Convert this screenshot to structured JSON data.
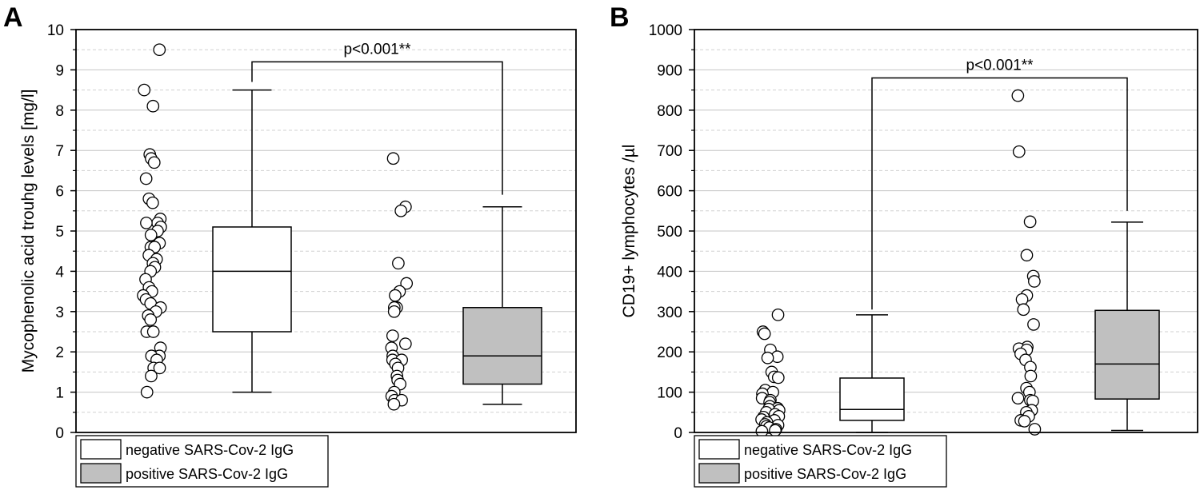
{
  "chart_data": [
    {
      "panel_label": "A",
      "type": "box+scatter",
      "ylabel": "Mycophenolic acid trouhg levels [mg/l]",
      "ylim": [
        0,
        10
      ],
      "ytick_values": [
        0,
        1,
        2,
        3,
        4,
        5,
        6,
        7,
        8,
        9,
        10
      ],
      "ytick_labels": [
        "0",
        "1",
        "2",
        "3",
        "4",
        "5",
        "6",
        "7",
        "8",
        "9",
        "10"
      ],
      "grid": "major solid, minor dashed",
      "legend_placement": "bottom-left, below plot",
      "significance": {
        "label": "p<0.001**",
        "y": 9.2,
        "left_drop_to": 8.7,
        "right_drop_to": 5.9
      },
      "series": [
        {
          "name": "negative SARS-Cov-2 IgG",
          "color": "#ffffff",
          "box": {
            "min": 1.0,
            "q1": 2.5,
            "median": 4.0,
            "q3": 5.1,
            "max": 8.5
          },
          "points": [
            9.5,
            8.5,
            8.1,
            6.9,
            6.8,
            6.7,
            6.3,
            5.8,
            5.7,
            5.3,
            5.2,
            5.2,
            5.1,
            5.0,
            4.9,
            4.7,
            4.6,
            4.6,
            4.4,
            4.3,
            4.2,
            4.1,
            4.0,
            3.8,
            3.6,
            3.5,
            3.4,
            3.3,
            3.2,
            3.1,
            3.0,
            2.9,
            2.8,
            2.5,
            2.5,
            2.1,
            1.9,
            1.9,
            1.8,
            1.6,
            1.6,
            1.4,
            1.0
          ]
        },
        {
          "name": "positive SARS-Cov-2 IgG",
          "color": "#c0c0c0",
          "box": {
            "min": 0.7,
            "q1": 1.2,
            "median": 1.9,
            "q3": 3.1,
            "max": 5.6
          },
          "points": [
            6.8,
            5.6,
            5.5,
            4.2,
            3.7,
            3.5,
            3.4,
            3.1,
            3.1,
            3.0,
            2.4,
            2.2,
            2.1,
            1.9,
            1.8,
            1.8,
            1.7,
            1.6,
            1.4,
            1.3,
            1.2,
            1.0,
            0.9,
            0.8,
            0.8,
            0.7
          ]
        }
      ]
    },
    {
      "panel_label": "B",
      "type": "box+scatter",
      "ylabel": "CD19+ lymphocytes /µl",
      "ylim": [
        0,
        1000
      ],
      "ytick_values": [
        0,
        100,
        200,
        300,
        400,
        500,
        600,
        700,
        800,
        900,
        1000
      ],
      "ytick_labels": [
        "0",
        "100",
        "200",
        "300",
        "400",
        "500",
        "600",
        "700",
        "800",
        "900",
        "1000"
      ],
      "grid": "major solid, minor dashed",
      "legend_placement": "bottom-left, below plot",
      "significance": {
        "label": "p<0.001**",
        "y": 880,
        "left_drop_to": 305,
        "right_drop_to": 550
      },
      "series": [
        {
          "name": "negative SARS-Cov-2 IgG",
          "color": "#ffffff",
          "box": {
            "min": 0,
            "q1": 30,
            "median": 57,
            "q3": 135,
            "max": 292
          },
          "points": [
            292,
            250,
            245,
            205,
            188,
            185,
            150,
            138,
            136,
            105,
            100,
            96,
            85,
            80,
            75,
            65,
            60,
            58,
            55,
            50,
            45,
            40,
            38,
            32,
            30,
            25,
            20,
            18,
            15,
            12,
            8,
            5,
            3
          ]
        },
        {
          "name": "positive SARS-Cov-2 IgG",
          "color": "#c0c0c0",
          "box": {
            "min": 5,
            "q1": 83,
            "median": 170,
            "q3": 303,
            "max": 522
          },
          "points": [
            836,
            697,
            523,
            440,
            388,
            375,
            340,
            330,
            305,
            268,
            212,
            208,
            205,
            195,
            180,
            162,
            140,
            110,
            100,
            85,
            80,
            78,
            55,
            50,
            40,
            30,
            28,
            8
          ]
        }
      ]
    }
  ]
}
